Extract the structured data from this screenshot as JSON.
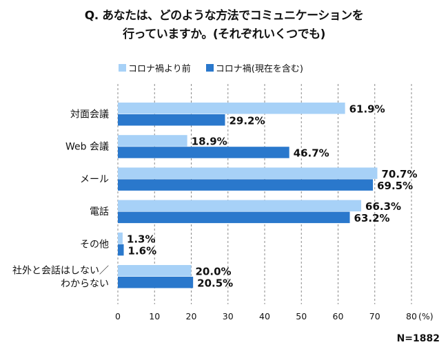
{
  "title_lines": [
    "Q. あなたは、どのような方法でコミュニケーションを",
    "行っていますか。(それぞれいくつでも)"
  ],
  "legend": [
    "コロナ禍より前",
    "コロナ禍(現在を含む)"
  ],
  "sample_size": "N=1882",
  "colors": {
    "before": "#a7d1f7",
    "current": "#2a78cc"
  },
  "chart_data": {
    "type": "bar",
    "orientation": "horizontal",
    "title": "Q. あなたは、どのような方法でコミュニケーションを行っていますか。(それぞれいくつでも)",
    "categories": [
      [
        "対面会議"
      ],
      [
        "Web 会議"
      ],
      [
        "メール"
      ],
      [
        "電話"
      ],
      [
        "その他"
      ],
      [
        "社外と会話はしない／",
        "わからない"
      ]
    ],
    "series": [
      {
        "name": "コロナ禍より前",
        "values": [
          61.9,
          18.9,
          70.7,
          66.3,
          1.3,
          20.0
        ],
        "labels": [
          "61.9%",
          "18.9%",
          "70.7%",
          "66.3%",
          "1.3%",
          "20.0%"
        ]
      },
      {
        "name": "コロナ禍(現在を含む)",
        "values": [
          29.2,
          46.7,
          69.5,
          63.2,
          1.6,
          20.5
        ],
        "labels": [
          "29.2%",
          "46.7%",
          "69.5%",
          "63.2%",
          "1.6%",
          "20.5%"
        ]
      }
    ],
    "xlim": [
      0,
      80
    ],
    "xticks": [
      "0",
      "10",
      "20",
      "30",
      "40",
      "50",
      "60",
      "70",
      "80"
    ],
    "xunit": "(%)",
    "grid": true,
    "legend_position": "top-left"
  }
}
